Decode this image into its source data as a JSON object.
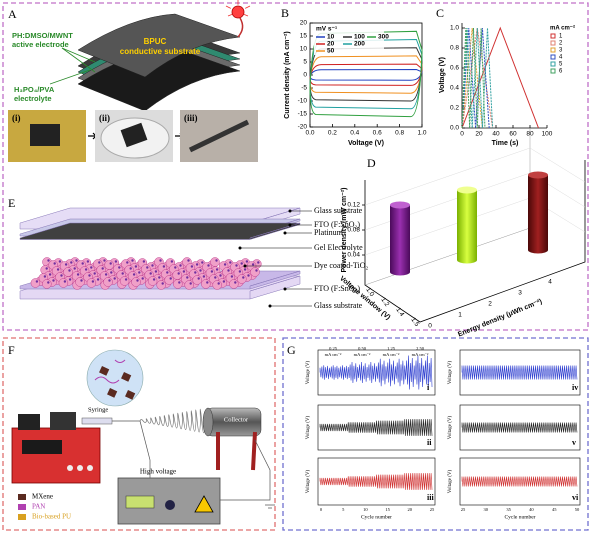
{
  "panels": {
    "A": {
      "label": "A",
      "electrode": "PH:DMSO/MWNT",
      "electrode_2": "active electrode",
      "substrate": "BPUC",
      "substrate_2": "conductive substrate",
      "electrolyte": "H₃PO₄/PVA",
      "electrolyte_2": "electrolyte",
      "steps": [
        "(i)",
        "(ii)",
        "(iii)"
      ]
    },
    "B": {
      "label": "B",
      "legend_title": "mV s⁻¹",
      "legend": [
        "10",
        "20",
        "50",
        "100",
        "200",
        "300"
      ],
      "ylabel": "Current density (mA cm⁻²)",
      "xlabel": "Voltage (V)",
      "xticks": [
        "0.0",
        "0.2",
        "0.4",
        "0.6",
        "0.8",
        "1.0"
      ],
      "yticks": [
        "20",
        "15",
        "10",
        "5",
        "0",
        "-5",
        "-10",
        "-15",
        "-20"
      ]
    },
    "C": {
      "label": "C",
      "legend_title": "mA cm⁻²",
      "legend": [
        "1",
        "2",
        "3",
        "4",
        "5",
        "6"
      ],
      "ylabel": "Voltage (V)",
      "xlabel": "Time (s)",
      "xticks": [
        "0",
        "20",
        "40",
        "60",
        "80",
        "100"
      ],
      "yticks": [
        "1.0",
        "0.8",
        "0.6",
        "0.4",
        "0.2",
        "0.0"
      ]
    },
    "D": {
      "label": "D",
      "ylabel": "Power density (mW cm⁻²)",
      "yticks": [
        "0.12",
        "0.08",
        "0.04"
      ],
      "xlabel": "Voltage window (V)",
      "xticks": [
        "1.0",
        "1.2",
        "1.4",
        "1.5"
      ],
      "zlabel": "Energy density (μWh cm⁻²)",
      "zticks": [
        "0",
        "1",
        "2",
        "3",
        "4"
      ]
    },
    "E": {
      "label": "E",
      "layers": [
        "Glass substrate",
        "FTO (F:SnO₂)",
        "Platinum",
        "Gel Electrolyte",
        "Dye coated-TiO₂",
        "FTO (F:SnO₂)",
        "Glass substrate"
      ]
    },
    "F": {
      "label": "F",
      "syringe": "Syringe",
      "collector": "Collector",
      "high_voltage": "High voltage",
      "legend": [
        "MXene",
        "PAN",
        "Bio-based PU"
      ]
    },
    "G": {
      "label": "G",
      "rates": [
        "0.25",
        "0.50",
        "1.25",
        "2.50"
      ],
      "rate_unit": "mA cm⁻²",
      "ylabel": "Voltage (V)",
      "xlabel": "Cycle number",
      "rows": [
        "i",
        "ii",
        "iii",
        "iv",
        "v",
        "vi"
      ],
      "xticks_left": [
        "0",
        "5",
        "10",
        "15",
        "20",
        "25"
      ],
      "xticks_right": [
        "25",
        "30",
        "35",
        "40",
        "45",
        "50"
      ]
    }
  }
}
